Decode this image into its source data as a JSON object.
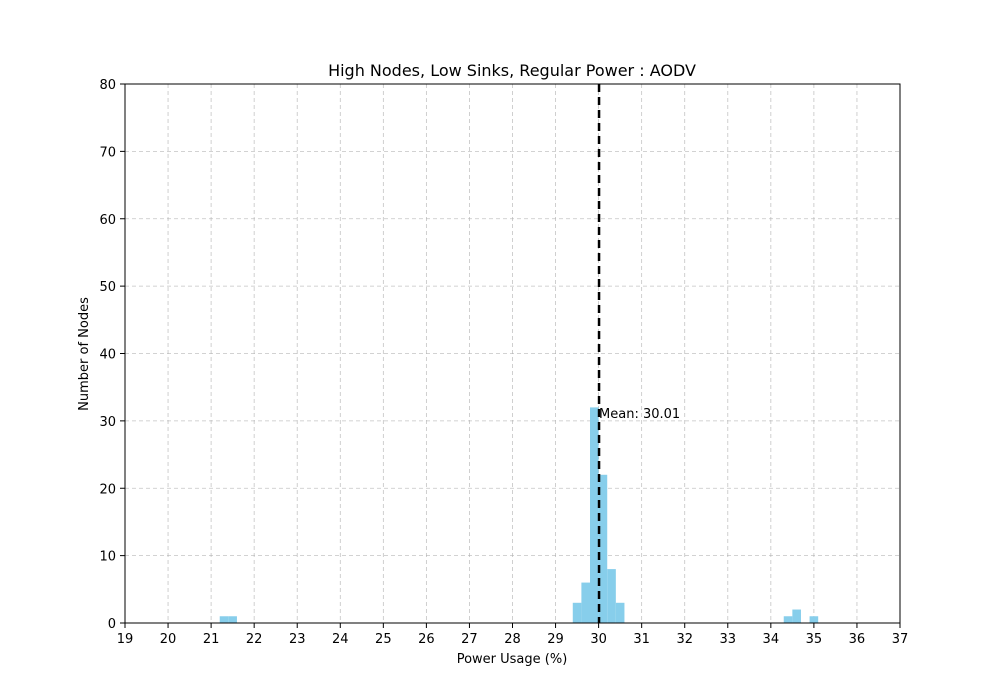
{
  "chart_data": {
    "type": "bar",
    "title": "High Nodes, Low Sinks, Regular Power : AODV",
    "xlabel": "Power Usage (%)",
    "ylabel": "Number of Nodes",
    "xlim": [
      19,
      37
    ],
    "ylim": [
      0,
      80
    ],
    "xticks": [
      19,
      20,
      21,
      22,
      23,
      24,
      25,
      26,
      27,
      28,
      29,
      30,
      31,
      32,
      33,
      34,
      35,
      36,
      37
    ],
    "yticks": [
      0,
      10,
      20,
      30,
      40,
      50,
      60,
      70,
      80
    ],
    "grid": true,
    "bar_color": "#87ceeb",
    "bins": [
      {
        "x0": 21.2,
        "x1": 21.4,
        "count": 1
      },
      {
        "x0": 21.4,
        "x1": 21.6,
        "count": 1
      },
      {
        "x0": 29.4,
        "x1": 29.6,
        "count": 3
      },
      {
        "x0": 29.6,
        "x1": 29.8,
        "count": 6
      },
      {
        "x0": 29.8,
        "x1": 30.0,
        "count": 32
      },
      {
        "x0": 30.0,
        "x1": 30.2,
        "count": 22
      },
      {
        "x0": 30.2,
        "x1": 30.4,
        "count": 8
      },
      {
        "x0": 30.4,
        "x1": 30.6,
        "count": 3
      },
      {
        "x0": 34.3,
        "x1": 34.5,
        "count": 1
      },
      {
        "x0": 34.5,
        "x1": 34.7,
        "count": 2
      },
      {
        "x0": 34.9,
        "x1": 35.1,
        "count": 1
      }
    ],
    "mean": {
      "value": 30.01,
      "label": "Mean: 30.01",
      "label_y": 31,
      "color": "#000000"
    }
  }
}
